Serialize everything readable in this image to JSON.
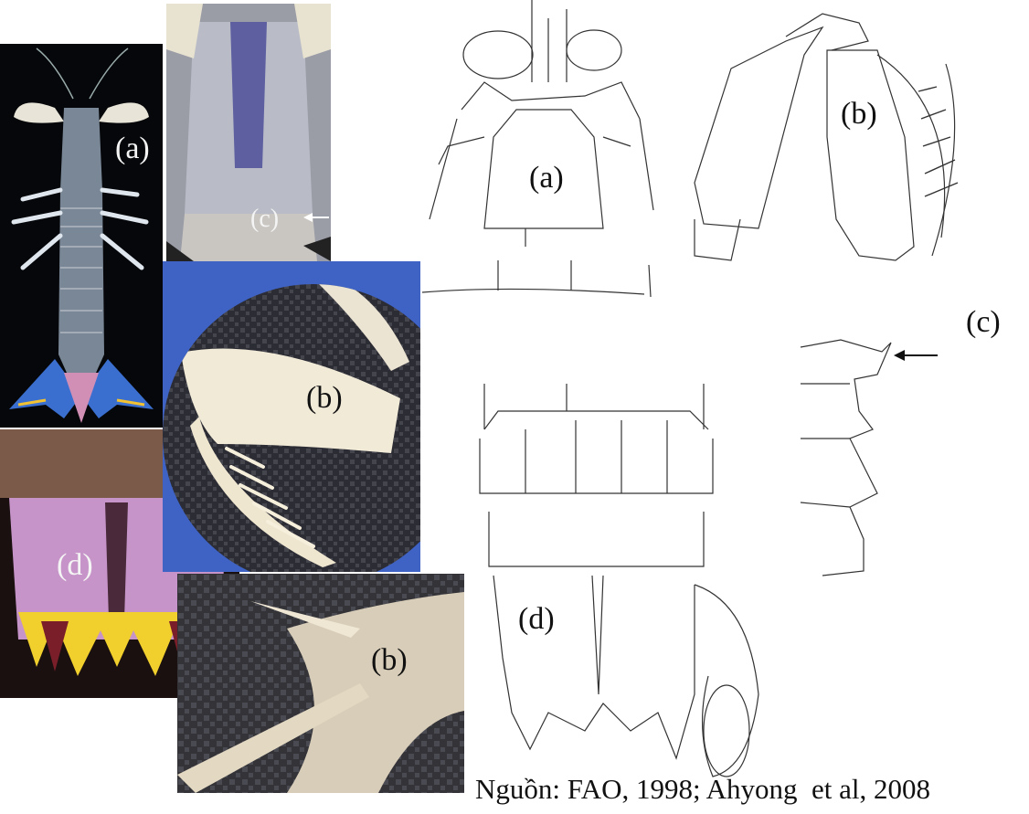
{
  "panel_labels": {
    "photo_whole_body": "(a)",
    "photo_carapace": "(c)",
    "photo_claw": "(b)",
    "photo_telson": "(d)",
    "photo_claw_detail": "(b)",
    "drawing_head": "(a)",
    "drawing_claw": "(b)",
    "drawing_segment": "(c)",
    "drawing_telson": "(d)"
  },
  "source_caption": "Nguồn: FAO, 1998; Ahyong  et al, 2008"
}
